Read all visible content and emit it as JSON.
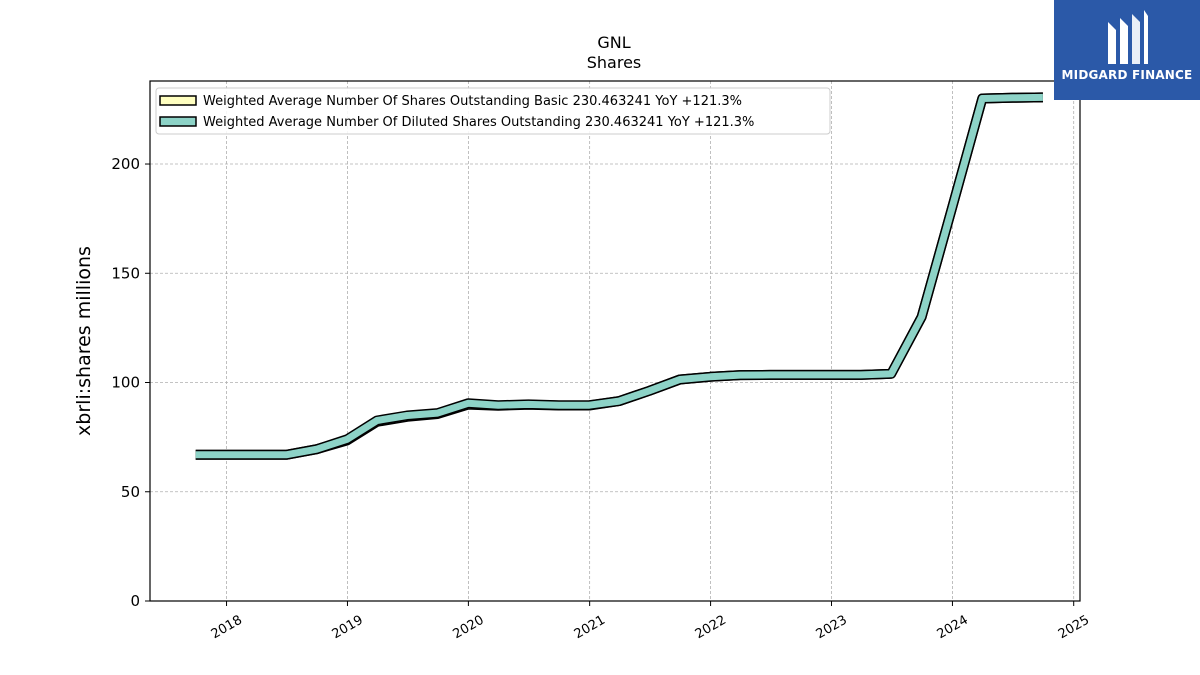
{
  "brand": {
    "name": "MIDGARD FINANCE",
    "bg_color": "#2b59a8"
  },
  "chart_data": {
    "type": "line",
    "title": "GNL",
    "subtitle": "Shares",
    "ylabel": "xbrli:shares millions",
    "xlabel": "",
    "ylim": [
      0,
      238
    ],
    "xlim": [
      "2017-05-15",
      "2025-01-20"
    ],
    "yticks": [
      0,
      50,
      100,
      150,
      200
    ],
    "xticks": [
      "2018",
      "2019",
      "2020",
      "2021",
      "2022",
      "2023",
      "2024",
      "2025"
    ],
    "grid": true,
    "legend_position": "top-left",
    "series": [
      {
        "name": "Weighted Average Number Of Shares Outstanding Basic  230.463241 YoY +121.3%",
        "color": "#ffffc0",
        "x": [
          "2017-09-30",
          "2018-06-30",
          "2018-09-30",
          "2018-12-31",
          "2019-03-31",
          "2019-06-30",
          "2019-09-30",
          "2019-12-31",
          "2020-03-31",
          "2020-06-30",
          "2020-09-30",
          "2020-12-31",
          "2021-03-31",
          "2021-06-30",
          "2021-09-30",
          "2021-12-31",
          "2022-03-31",
          "2022-06-30",
          "2022-09-30",
          "2022-12-31",
          "2023-03-31",
          "2023-06-30",
          "2023-09-30",
          "2023-12-31",
          "2024-03-31",
          "2024-06-30",
          "2024-09-30"
        ],
        "values": [
          66.9,
          66.9,
          69.5,
          73.5,
          82.0,
          84.3,
          85.6,
          89.9,
          89.4,
          89.8,
          89.5,
          89.5,
          91.5,
          96.2,
          101.4,
          102.6,
          103.4,
          103.5,
          103.5,
          103.5,
          103.5,
          104.0,
          130.0,
          180.0,
          230.0,
          230.3,
          230.5
        ]
      },
      {
        "name": "Weighted Average Number Of Diluted Shares Outstanding  230.463241 YoY +121.3%",
        "color": "#8dd3c7",
        "x": [
          "2017-09-30",
          "2018-06-30",
          "2018-09-30",
          "2018-12-31",
          "2019-03-31",
          "2019-06-30",
          "2019-09-30",
          "2019-12-31",
          "2020-03-31",
          "2020-06-30",
          "2020-09-30",
          "2020-12-31",
          "2021-03-31",
          "2021-06-30",
          "2021-09-30",
          "2021-12-31",
          "2022-03-31",
          "2022-06-30",
          "2022-09-30",
          "2022-12-31",
          "2023-03-31",
          "2023-06-30",
          "2023-09-30",
          "2023-12-31",
          "2024-03-31",
          "2024-06-30",
          "2024-09-30"
        ],
        "values": [
          66.9,
          66.9,
          69.5,
          74.0,
          82.6,
          84.9,
          86.0,
          90.5,
          89.6,
          90.0,
          89.6,
          89.6,
          91.5,
          96.2,
          101.4,
          102.6,
          103.4,
          103.5,
          103.5,
          103.5,
          103.5,
          104.0,
          130.0,
          180.0,
          230.0,
          230.3,
          230.5
        ]
      }
    ]
  }
}
